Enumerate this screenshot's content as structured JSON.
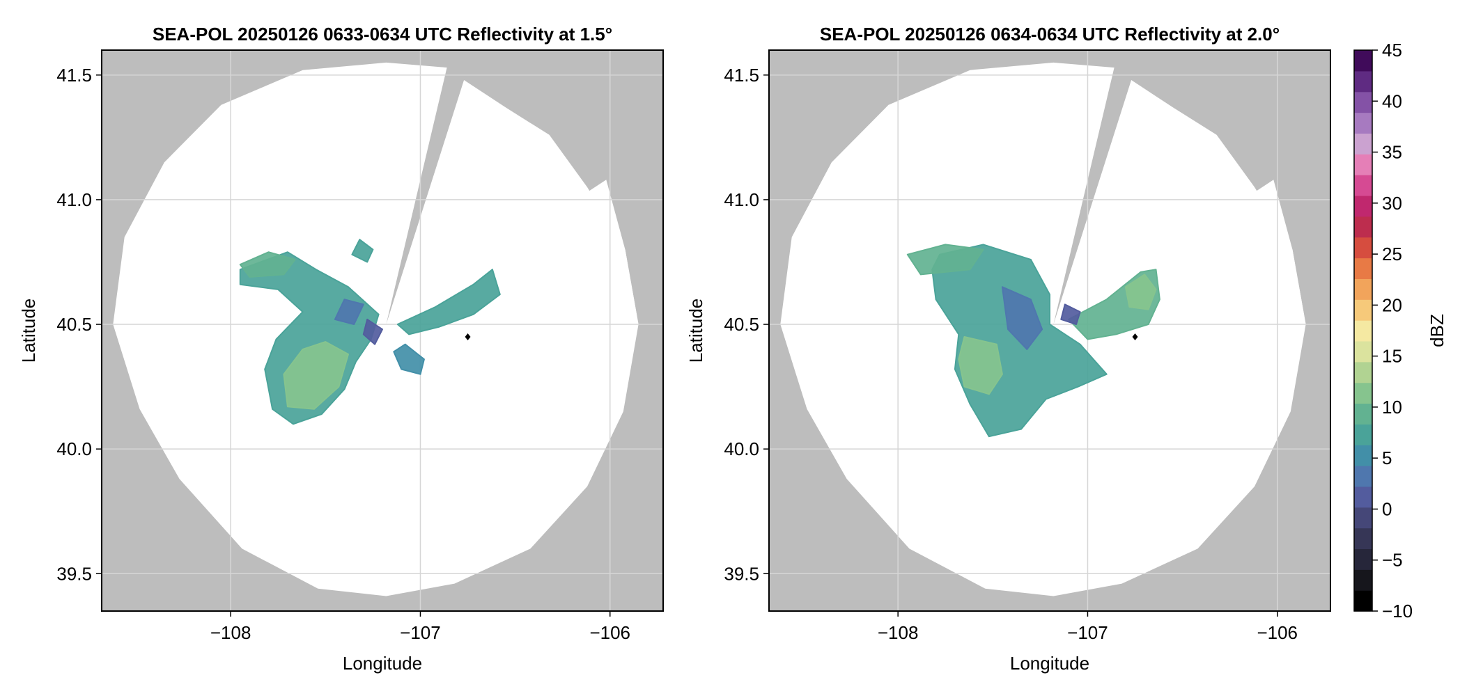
{
  "figure": {
    "colors": {
      "background": "#ffffff",
      "masked": "#bdbdbd",
      "coverage": "#ffffff",
      "grid": "#d6d6d6",
      "frame": "#000000",
      "radar_site": "#000000"
    }
  },
  "chart_data": [
    {
      "type": "heatmap",
      "title": "SEA-POL 20250126 0633-0634 UTC Reflectivity at 1.5°",
      "xlabel": "Longitude",
      "ylabel": "Latitude",
      "xlim": [
        -108.68,
        -105.72
      ],
      "ylim": [
        39.35,
        41.6
      ],
      "xticks": [
        -108,
        -107,
        -106
      ],
      "xtick_labels": [
        "−108",
        "−107",
        "−106"
      ],
      "yticks": [
        39.5,
        40.0,
        40.5,
        41.0,
        41.5
      ],
      "ytick_labels": [
        "39.5",
        "40.0",
        "40.5",
        "41.0",
        "41.5"
      ],
      "grid": true,
      "radar": {
        "lon": -107.18,
        "lat": 40.5
      },
      "coverage_edge": [
        [
          -107.18,
          41.55
        ],
        [
          -106.94,
          41.52
        ],
        [
          -106.77,
          41.48
        ],
        [
          -106.55,
          41.37
        ],
        [
          -106.32,
          41.26
        ],
        [
          -106.12,
          41.05
        ],
        [
          -105.92,
          40.8
        ],
        [
          -105.85,
          40.5
        ],
        [
          -105.93,
          40.15
        ],
        [
          -106.12,
          39.85
        ],
        [
          -106.42,
          39.6
        ],
        [
          -106.82,
          39.46
        ],
        [
          -107.18,
          39.41
        ],
        [
          -107.54,
          39.44
        ],
        [
          -107.94,
          39.6
        ],
        [
          -108.27,
          39.88
        ],
        [
          -108.48,
          40.16
        ],
        [
          -108.62,
          40.5
        ],
        [
          -108.56,
          40.85
        ],
        [
          -108.35,
          41.15
        ],
        [
          -108.05,
          41.38
        ],
        [
          -107.62,
          41.52
        ]
      ],
      "blocked_sectors": [
        {
          "from": [
            -106.86,
            41.53
          ],
          "to": [
            -106.82,
            41.53
          ]
        },
        {
          "from": [
            -106.06,
            41.12
          ],
          "to": [
            -106.02,
            41.08
          ]
        }
      ],
      "site_marker": {
        "lon": -106.75,
        "lat": 40.45
      },
      "echo_regions": [
        {
          "dbz": 10,
          "points": [
            [
              -107.95,
              40.72
            ],
            [
              -107.7,
              40.79
            ],
            [
              -107.55,
              40.72
            ],
            [
              -107.38,
              40.65
            ],
            [
              -107.22,
              40.54
            ],
            [
              -107.26,
              40.44
            ],
            [
              -107.34,
              40.35
            ],
            [
              -107.4,
              40.24
            ],
            [
              -107.52,
              40.14
            ],
            [
              -107.67,
              40.1
            ],
            [
              -107.78,
              40.16
            ],
            [
              -107.82,
              40.32
            ],
            [
              -107.76,
              40.44
            ],
            [
              -107.62,
              40.55
            ],
            [
              -107.75,
              40.64
            ],
            [
              -107.95,
              40.66
            ]
          ]
        },
        {
          "dbz": 17,
          "points": [
            [
              -107.5,
              40.43
            ],
            [
              -107.38,
              40.38
            ],
            [
              -107.43,
              40.25
            ],
            [
              -107.56,
              40.16
            ],
            [
              -107.7,
              40.17
            ],
            [
              -107.72,
              40.3
            ],
            [
              -107.62,
              40.4
            ]
          ]
        },
        {
          "dbz": 14,
          "points": [
            [
              -107.95,
              40.74
            ],
            [
              -107.8,
              40.79
            ],
            [
              -107.66,
              40.76
            ],
            [
              -107.72,
              40.7
            ],
            [
              -107.9,
              40.69
            ]
          ]
        },
        {
          "dbz": 3,
          "points": [
            [
              -107.28,
              40.52
            ],
            [
              -107.2,
              40.48
            ],
            [
              -107.24,
              40.42
            ],
            [
              -107.3,
              40.46
            ]
          ]
        },
        {
          "dbz": 6,
          "points": [
            [
              -107.4,
              40.6
            ],
            [
              -107.3,
              40.58
            ],
            [
              -107.35,
              40.5
            ],
            [
              -107.45,
              40.52
            ]
          ]
        },
        {
          "dbz": 12,
          "points": [
            [
              -107.12,
              40.5
            ],
            [
              -106.92,
              40.57
            ],
            [
              -106.72,
              40.66
            ],
            [
              -106.62,
              40.72
            ],
            [
              -106.58,
              40.62
            ],
            [
              -106.72,
              40.54
            ],
            [
              -106.9,
              40.49
            ],
            [
              -107.06,
              40.46
            ]
          ]
        },
        {
          "dbz": 9,
          "points": [
            [
              -107.08,
              40.42
            ],
            [
              -106.98,
              40.36
            ],
            [
              -107.0,
              40.3
            ],
            [
              -107.1,
              40.32
            ],
            [
              -107.14,
              40.39
            ]
          ]
        },
        {
          "dbz": 11,
          "points": [
            [
              -107.32,
              40.84
            ],
            [
              -107.25,
              40.8
            ],
            [
              -107.28,
              40.75
            ],
            [
              -107.36,
              40.78
            ]
          ]
        }
      ]
    },
    {
      "type": "heatmap",
      "title": "SEA-POL 20250126 0634-0634 UTC Reflectivity at 2.0°",
      "xlabel": "Longitude",
      "ylabel": "Latitude",
      "xlim": [
        -108.68,
        -105.72
      ],
      "ylim": [
        39.35,
        41.6
      ],
      "xticks": [
        -108,
        -107,
        -106
      ],
      "xtick_labels": [
        "−108",
        "−107",
        "−106"
      ],
      "yticks": [
        39.5,
        40.0,
        40.5,
        41.0,
        41.5
      ],
      "ytick_labels": [
        "39.5",
        "40.0",
        "40.5",
        "41.0",
        "41.5"
      ],
      "grid": true,
      "radar": {
        "lon": -107.18,
        "lat": 40.5
      },
      "coverage_edge": [
        [
          -107.18,
          41.55
        ],
        [
          -106.94,
          41.52
        ],
        [
          -106.77,
          41.48
        ],
        [
          -106.55,
          41.37
        ],
        [
          -106.32,
          41.26
        ],
        [
          -106.12,
          41.05
        ],
        [
          -105.92,
          40.8
        ],
        [
          -105.85,
          40.5
        ],
        [
          -105.93,
          40.15
        ],
        [
          -106.12,
          39.85
        ],
        [
          -106.42,
          39.6
        ],
        [
          -106.82,
          39.46
        ],
        [
          -107.18,
          39.41
        ],
        [
          -107.54,
          39.44
        ],
        [
          -107.94,
          39.6
        ],
        [
          -108.27,
          39.88
        ],
        [
          -108.48,
          40.16
        ],
        [
          -108.62,
          40.5
        ],
        [
          -108.56,
          40.85
        ],
        [
          -108.35,
          41.15
        ],
        [
          -108.05,
          41.38
        ],
        [
          -107.62,
          41.52
        ]
      ],
      "blocked_sectors": [
        {
          "from": [
            -106.86,
            41.53
          ],
          "to": [
            -106.82,
            41.53
          ]
        },
        {
          "from": [
            -106.06,
            41.12
          ],
          "to": [
            -106.02,
            41.08
          ]
        }
      ],
      "site_marker": {
        "lon": -106.75,
        "lat": 40.45
      },
      "echo_regions": [
        {
          "dbz": 10,
          "points": [
            [
              -107.78,
              40.78
            ],
            [
              -107.55,
              40.82
            ],
            [
              -107.3,
              40.76
            ],
            [
              -107.2,
              40.62
            ],
            [
              -107.2,
              40.5
            ],
            [
              -107.04,
              40.42
            ],
            [
              -106.9,
              40.3
            ],
            [
              -107.05,
              40.25
            ],
            [
              -107.22,
              40.2
            ],
            [
              -107.35,
              40.08
            ],
            [
              -107.52,
              40.05
            ],
            [
              -107.62,
              40.18
            ],
            [
              -107.7,
              40.32
            ],
            [
              -107.68,
              40.46
            ],
            [
              -107.8,
              40.6
            ],
            [
              -107.82,
              40.72
            ]
          ]
        },
        {
          "dbz": 17,
          "points": [
            [
              -107.65,
              40.45
            ],
            [
              -107.48,
              40.42
            ],
            [
              -107.45,
              40.3
            ],
            [
              -107.52,
              40.22
            ],
            [
              -107.65,
              40.25
            ],
            [
              -107.68,
              40.36
            ]
          ]
        },
        {
          "dbz": 6,
          "points": [
            [
              -107.45,
              40.65
            ],
            [
              -107.3,
              40.6
            ],
            [
              -107.24,
              40.48
            ],
            [
              -107.32,
              40.4
            ],
            [
              -107.42,
              40.48
            ]
          ]
        },
        {
          "dbz": 14,
          "points": [
            [
              -107.95,
              40.78
            ],
            [
              -107.75,
              40.82
            ],
            [
              -107.55,
              40.8
            ],
            [
              -107.62,
              40.72
            ],
            [
              -107.88,
              40.7
            ]
          ]
        },
        {
          "dbz": 13,
          "points": [
            [
              -107.1,
              40.52
            ],
            [
              -106.9,
              40.6
            ],
            [
              -106.72,
              40.71
            ],
            [
              -106.64,
              40.72
            ],
            [
              -106.62,
              40.6
            ],
            [
              -106.68,
              40.5
            ],
            [
              -106.85,
              40.46
            ],
            [
              -107.0,
              40.44
            ]
          ]
        },
        {
          "dbz": 17,
          "points": [
            [
              -106.8,
              40.65
            ],
            [
              -106.7,
              40.7
            ],
            [
              -106.64,
              40.64
            ],
            [
              -106.68,
              40.56
            ],
            [
              -106.78,
              40.57
            ]
          ]
        },
        {
          "dbz": 4,
          "points": [
            [
              -107.12,
              40.58
            ],
            [
              -107.04,
              40.55
            ],
            [
              -107.06,
              40.5
            ],
            [
              -107.14,
              40.52
            ]
          ]
        }
      ]
    }
  ],
  "colorbar": {
    "label": "dBZ",
    "min": -10,
    "max": 45,
    "step": 2.5,
    "ticks": [
      -10,
      -5,
      0,
      5,
      10,
      15,
      20,
      25,
      30,
      35,
      40,
      45
    ],
    "tick_labels": [
      "−10",
      "−5",
      "0",
      "5",
      "10",
      "15",
      "20",
      "25",
      "30",
      "35",
      "40",
      "45"
    ],
    "colors": [
      "#000000",
      "#16161c",
      "#26263a",
      "#363656",
      "#454778",
      "#535c9e",
      "#4f77ae",
      "#428fa8",
      "#4aa399",
      "#62b291",
      "#86c48e",
      "#b1d392",
      "#dbe39e",
      "#f5e9a2",
      "#f6c97a",
      "#f2a45b",
      "#e87a45",
      "#d64d3f",
      "#bd2d4e",
      "#c0286e",
      "#d64a93",
      "#e57fb7",
      "#cba2d0",
      "#a77ac0",
      "#8452a6",
      "#5f2b82",
      "#400b5a"
    ]
  }
}
